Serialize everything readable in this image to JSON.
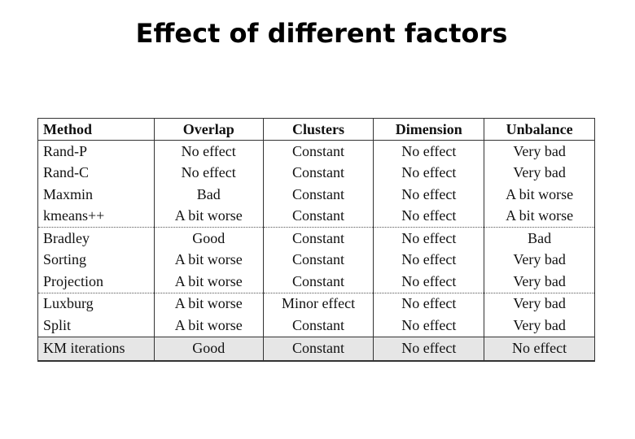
{
  "title": "Effect of different factors",
  "table": {
    "headers": [
      "Method",
      "Overlap",
      "Clusters",
      "Dimension",
      "Unbalance"
    ],
    "rows": [
      {
        "method": "Rand-P",
        "overlap": "No effect",
        "clusters": "Constant",
        "dimension": "No effect",
        "unbalance": "Very bad"
      },
      {
        "method": "Rand-C",
        "overlap": "No effect",
        "clusters": "Constant",
        "dimension": "No effect",
        "unbalance": "Very bad"
      },
      {
        "method": "Maxmin",
        "overlap": "Bad",
        "clusters": "Constant",
        "dimension": "No effect",
        "unbalance": "A bit worse"
      },
      {
        "method": "kmeans++",
        "overlap": "A bit worse",
        "clusters": "Constant",
        "dimension": "No effect",
        "unbalance": "A bit worse"
      },
      {
        "method": "Bradley",
        "overlap": "Good",
        "clusters": "Constant",
        "dimension": "No effect",
        "unbalance": "Bad"
      },
      {
        "method": "Sorting",
        "overlap": "A bit worse",
        "clusters": "Constant",
        "dimension": "No effect",
        "unbalance": "Very bad"
      },
      {
        "method": "Projection",
        "overlap": "A bit worse",
        "clusters": "Constant",
        "dimension": "No effect",
        "unbalance": "Very bad"
      },
      {
        "method": "Luxburg",
        "overlap": "A bit worse",
        "clusters": "Minor effect",
        "dimension": "No effect",
        "unbalance": "Very bad"
      },
      {
        "method": "Split",
        "overlap": "A bit worse",
        "clusters": "Constant",
        "dimension": "No effect",
        "unbalance": "Very bad"
      },
      {
        "method": "KM iterations",
        "overlap": "Good",
        "clusters": "Constant",
        "dimension": "No effect",
        "unbalance": "No effect"
      }
    ]
  }
}
